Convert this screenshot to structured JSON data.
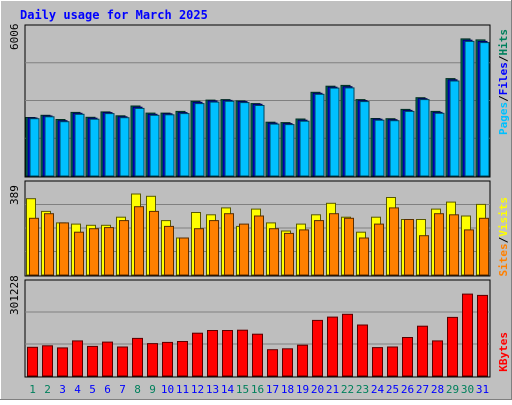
{
  "title": "Daily usage for March 2025",
  "colors": {
    "background": "#C0C0C0",
    "panel": "#BEBEBE",
    "title": "#0000FF",
    "hits": "#00805C",
    "files": "#0000FF",
    "pages": "#00C0FF",
    "visits": "#FFFF00",
    "sites": "#FF8000",
    "kbytes": "#FF0000",
    "weekend_day": "#00805C",
    "weekday": "#0000FF"
  },
  "panels": {
    "top": {
      "max_label": "6006",
      "legend": {
        "pages": "Pages",
        "files": "Files",
        "hits": "Hits",
        "sep": "/"
      }
    },
    "middle": {
      "max_label": "389",
      "legend": {
        "sites": "Sites",
        "visits": "Visits",
        "sep": "/"
      }
    },
    "bottom": {
      "max_label": "301228",
      "legend": {
        "kbytes": "KBytes"
      }
    }
  },
  "chart_data": {
    "type": "bar",
    "title": "Daily usage for March 2025",
    "categories": [
      "1",
      "2",
      "3",
      "4",
      "5",
      "6",
      "7",
      "8",
      "9",
      "10",
      "11",
      "12",
      "13",
      "14",
      "15",
      "16",
      "17",
      "18",
      "19",
      "20",
      "21",
      "22",
      "23",
      "24",
      "25",
      "26",
      "27",
      "28",
      "29",
      "30",
      "31"
    ],
    "weekend_days": [
      1,
      2,
      8,
      9,
      15,
      16,
      22,
      23,
      29,
      30
    ],
    "panels": [
      {
        "name": "top",
        "ylim": [
          0,
          6006
        ],
        "series": [
          {
            "name": "Hits",
            "values": [
              2390,
              2480,
              2310,
              2600,
              2400,
              2620,
              2460,
              2860,
              2570,
              2570,
              2640,
              3050,
              3100,
              3120,
              3070,
              2960,
              2200,
              2180,
              2330,
              3420,
              3670,
              3700,
              3120,
              2350,
              2340,
              2720,
              3200,
              2640,
              3980,
              5600,
              5560
            ]
          },
          {
            "name": "Files",
            "values": [
              2370,
              2450,
              2260,
              2560,
              2360,
              2590,
              2420,
              2810,
              2520,
              2540,
              2590,
              3010,
              3070,
              3090,
              3040,
              2930,
              2160,
              2140,
              2280,
              3380,
              3630,
              3650,
              3080,
              2320,
              2300,
              2680,
              3160,
              2600,
              3930,
              5550,
              5500
            ]
          },
          {
            "name": "Pages",
            "values": [
              2340,
              2420,
              2220,
              2520,
              2320,
              2550,
              2380,
              2760,
              2480,
              2500,
              2550,
              2960,
              3020,
              3050,
              3000,
              2880,
              2120,
              2100,
              2240,
              3340,
              3590,
              3600,
              3040,
              2280,
              2260,
              2640,
              3120,
              2560,
              3880,
              5500,
              5450
            ]
          }
        ]
      },
      {
        "name": "middle",
        "ylim": [
          0,
          389
        ],
        "series": [
          {
            "name": "Visits",
            "values": [
              330,
              275,
              225,
              220,
              215,
              215,
              250,
              350,
              340,
              235,
              160,
              270,
              260,
              290,
              210,
              285,
              225,
              190,
              220,
              260,
              310,
              250,
              185,
              250,
              335,
              240,
              240,
              285,
              315,
              255,
              305
            ]
          },
          {
            "name": "Sites",
            "values": [
              245,
              265,
              225,
              185,
              200,
              205,
              235,
              295,
              275,
              210,
              160,
              200,
              235,
              265,
              220,
              255,
              200,
              180,
              195,
              235,
              265,
              245,
              160,
              220,
              290,
              240,
              170,
              265,
              260,
              195,
              245
            ]
          }
        ]
      },
      {
        "name": "bottom",
        "ylim": [
          0,
          301228
        ],
        "series": [
          {
            "name": "KBytes",
            "values": [
              94000,
              99000,
              92000,
              115000,
              97000,
              111000,
              95000,
              123000,
              106000,
              110000,
              113000,
              140000,
              149000,
              149000,
              150000,
              137000,
              86000,
              89000,
              101000,
              182000,
              193000,
              202000,
              167000,
              93000,
              95000,
              126000,
              163000,
              115000,
              192000,
              268000,
              264000
            ]
          }
        ]
      }
    ]
  }
}
